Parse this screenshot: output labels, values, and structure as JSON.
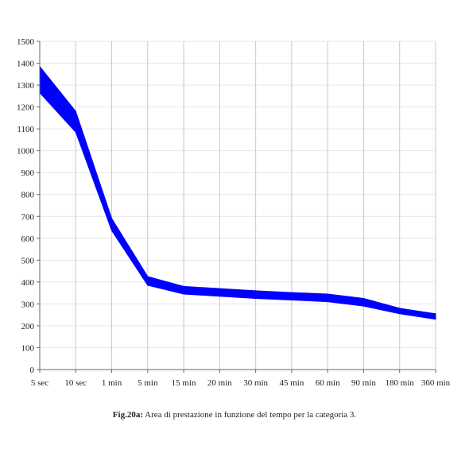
{
  "chart_data": {
    "type": "area",
    "categories": [
      "5 sec",
      "10 sec",
      "1 min",
      "5 min",
      "15 min",
      "20 min",
      "30 min",
      "45 min",
      "60 min",
      "90 min",
      "180 min",
      "360 min"
    ],
    "series": [
      {
        "values": [
          1385,
          1180,
          690,
          425,
          380,
          370,
          360,
          352,
          345,
          325,
          280,
          255
        ]
      },
      {
        "values": [
          1265,
          1085,
          635,
          385,
          345,
          335,
          325,
          318,
          310,
          290,
          255,
          230
        ]
      }
    ],
    "ylim": [
      0,
      1500
    ],
    "yticks": [
      0,
      100,
      200,
      300,
      400,
      500,
      600,
      700,
      800,
      900,
      1000,
      1100,
      1200,
      1300,
      1400,
      1500
    ],
    "grid": true,
    "fill_color": "#0000ff"
  },
  "caption": {
    "label": "Fig.20a:",
    "text": "Area di prestazione in funzione del tempo per la categoria 3."
  }
}
